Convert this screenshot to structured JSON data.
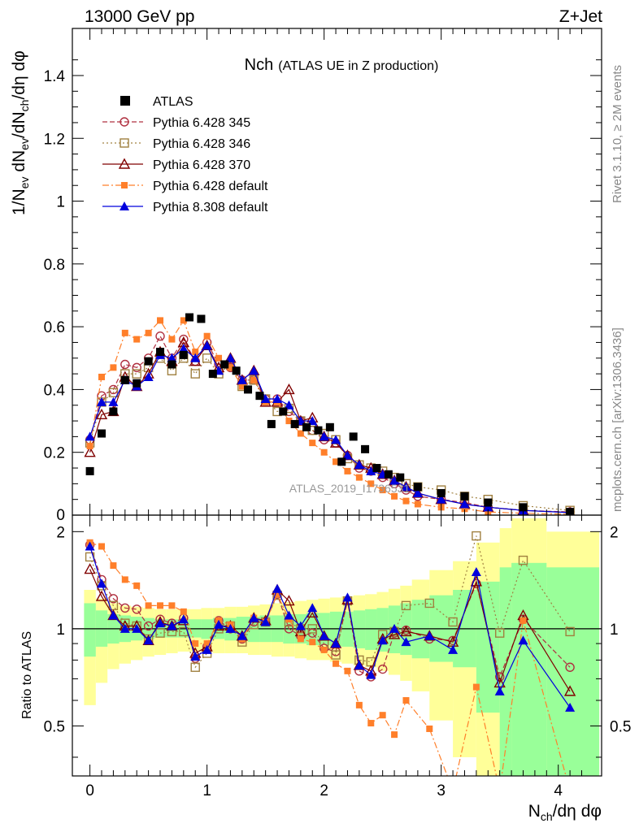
{
  "header": {
    "energy": "13000 GeV pp",
    "process": "Z+Jet",
    "title_main": "Nch",
    "title_sub": "(ATLAS UE in Z production)",
    "watermark": "ATLAS_2019_I1736531",
    "side_top": "Rivet 3.1.10, ≥ 2M events",
    "side_bottom": "mcplots.cern.ch [arXiv:1306.3436]"
  },
  "chart_data": {
    "type": "scatter",
    "title": "Nch (ATLAS UE in Z production)",
    "xlabel": "N_ch/dη dφ",
    "ylabel": "1/N_ev dN_ev/dN_ch/dη dφ",
    "ratio_ylabel": "Ratio to ATLAS",
    "xlim": [
      -0.15,
      4.37
    ],
    "ylim": [
      0,
      1.55
    ],
    "ratio_ylim": [
      0.35,
      2.25
    ],
    "x_ticks": [
      0,
      1,
      2,
      3,
      4
    ],
    "y_ticks": [
      0.2,
      0.4,
      0.6,
      0.8,
      1,
      1.2,
      1.4
    ],
    "ratio_ticks": [
      0.5,
      1,
      2
    ],
    "legend_position": "top-left",
    "data": {
      "name": "ATLAS",
      "color": "#000000",
      "x": [
        0.0,
        0.1,
        0.2,
        0.3,
        0.4,
        0.5,
        0.6,
        0.7,
        0.8,
        0.85,
        0.95,
        1.05,
        1.15,
        1.25,
        1.35,
        1.45,
        1.55,
        1.65,
        1.75,
        1.85,
        1.95,
        2.05,
        2.15,
        2.25,
        2.35,
        2.45,
        2.55,
        2.65,
        2.8,
        3.0,
        3.2,
        3.4,
        3.7,
        4.1
      ],
      "y": [
        0.14,
        0.26,
        0.33,
        0.43,
        0.42,
        0.49,
        0.52,
        0.48,
        0.51,
        0.63,
        0.625,
        0.45,
        0.48,
        0.46,
        0.4,
        0.38,
        0.29,
        0.33,
        0.29,
        0.28,
        0.27,
        0.28,
        0.17,
        0.25,
        0.21,
        0.15,
        0.13,
        0.12,
        0.09,
        0.07,
        0.06,
        0.04,
        0.025,
        0.01
      ]
    },
    "band_bins": [
      -0.05,
      0.05,
      0.15,
      0.25,
      0.35,
      0.45,
      0.55,
      0.65,
      0.75,
      0.85,
      0.95,
      1.05,
      1.15,
      1.25,
      1.35,
      1.45,
      1.55,
      1.65,
      1.75,
      1.85,
      1.95,
      2.05,
      2.15,
      2.25,
      2.35,
      2.45,
      2.55,
      2.65,
      2.75,
      2.9,
      3.1,
      3.3,
      3.5,
      3.6,
      3.9,
      4.35
    ],
    "band_inner_lo": [
      0.82,
      0.88,
      0.9,
      0.91,
      0.92,
      0.93,
      0.94,
      0.94,
      0.94,
      0.94,
      0.93,
      0.93,
      0.92,
      0.92,
      0.91,
      0.91,
      0.91,
      0.9,
      0.9,
      0.89,
      0.89,
      0.88,
      0.88,
      0.87,
      0.86,
      0.85,
      0.84,
      0.83,
      0.81,
      0.79,
      0.76,
      0.55,
      0.35,
      0.35,
      0.35
    ],
    "band_inner_hi": [
      1.2,
      1.14,
      1.11,
      1.1,
      1.09,
      1.08,
      1.07,
      1.07,
      1.07,
      1.07,
      1.07,
      1.08,
      1.08,
      1.09,
      1.09,
      1.1,
      1.1,
      1.11,
      1.11,
      1.12,
      1.12,
      1.13,
      1.13,
      1.14,
      1.15,
      1.16,
      1.18,
      1.2,
      1.23,
      1.27,
      1.32,
      1.4,
      1.55,
      1.6,
      1.55
    ],
    "band_outer_lo": [
      0.58,
      0.68,
      0.75,
      0.78,
      0.8,
      0.82,
      0.83,
      0.84,
      0.85,
      0.85,
      0.85,
      0.84,
      0.84,
      0.84,
      0.83,
      0.83,
      0.82,
      0.82,
      0.81,
      0.8,
      0.8,
      0.79,
      0.78,
      0.77,
      0.76,
      0.74,
      0.72,
      0.69,
      0.64,
      0.52,
      0.4,
      0.35,
      0.35,
      0.35,
      0.35
    ],
    "band_outer_hi": [
      1.32,
      1.24,
      1.2,
      1.18,
      1.17,
      1.16,
      1.15,
      1.15,
      1.15,
      1.15,
      1.16,
      1.16,
      1.17,
      1.17,
      1.18,
      1.19,
      1.2,
      1.21,
      1.22,
      1.23,
      1.24,
      1.25,
      1.26,
      1.27,
      1.28,
      1.3,
      1.33,
      1.36,
      1.42,
      1.52,
      1.62,
      1.85,
      2.05,
      2.2,
      2.0
    ],
    "series": [
      {
        "name": "Pythia 6.428 345",
        "color": "#b03040",
        "marker": "open-circle",
        "dash": "6,3",
        "x": [
          0.0,
          0.1,
          0.2,
          0.3,
          0.4,
          0.5,
          0.6,
          0.7,
          0.8,
          0.9,
          1.0,
          1.1,
          1.2,
          1.3,
          1.4,
          1.5,
          1.6,
          1.7,
          1.8,
          1.9,
          2.0,
          2.1,
          2.2,
          2.3,
          2.4,
          2.5,
          2.6,
          2.7,
          2.8,
          3.0,
          3.2,
          3.4,
          3.7,
          4.1
        ],
        "y": [
          0.24,
          0.38,
          0.4,
          0.48,
          0.47,
          0.5,
          0.57,
          0.5,
          0.56,
          0.49,
          0.55,
          0.48,
          0.47,
          0.43,
          0.43,
          0.37,
          0.37,
          0.33,
          0.3,
          0.27,
          0.24,
          0.23,
          0.19,
          0.15,
          0.14,
          0.12,
          0.1,
          0.08,
          0.06,
          0.05,
          0.04,
          0.025,
          0.015,
          0.01
        ],
        "ratio_x": [
          0.0,
          0.1,
          0.2,
          0.3,
          0.4,
          0.5,
          0.6,
          0.7,
          0.8,
          0.9,
          1.0,
          1.1,
          1.2,
          1.3,
          1.4,
          1.5,
          1.6,
          1.7,
          1.8,
          1.9,
          2.0,
          2.1,
          2.2,
          2.3,
          2.4,
          2.5,
          2.6,
          2.7,
          2.9,
          3.1,
          3.3,
          3.5,
          3.7,
          4.1
        ],
        "ratio": [
          1.82,
          1.42,
          1.24,
          1.16,
          1.15,
          1.02,
          1.07,
          1.04,
          1.08,
          0.81,
          0.88,
          1.06,
          1.0,
          0.93,
          1.05,
          1.05,
          1.28,
          1.0,
          0.95,
          0.97,
          0.87,
          0.85,
          1.22,
          0.74,
          0.71,
          0.75,
          0.97,
          0.99,
          0.93,
          0.92,
          1.38,
          0.71,
          1.07,
          0.76
        ]
      },
      {
        "name": "Pythia 6.428 346",
        "color": "#a08040",
        "marker": "open-square",
        "dash": "2,3",
        "x": [
          0.0,
          0.1,
          0.2,
          0.3,
          0.4,
          0.5,
          0.6,
          0.7,
          0.8,
          0.9,
          1.0,
          1.1,
          1.2,
          1.3,
          1.4,
          1.5,
          1.6,
          1.7,
          1.8,
          1.9,
          2.0,
          2.1,
          2.2,
          2.3,
          2.4,
          2.5,
          2.6,
          2.7,
          2.8,
          3.0,
          3.2,
          3.4,
          3.7,
          4.1
        ],
        "y": [
          0.23,
          0.36,
          0.39,
          0.45,
          0.45,
          0.47,
          0.5,
          0.46,
          0.5,
          0.45,
          0.5,
          0.45,
          0.48,
          0.41,
          0.43,
          0.37,
          0.33,
          0.34,
          0.3,
          0.27,
          0.26,
          0.24,
          0.18,
          0.16,
          0.15,
          0.14,
          0.12,
          0.1,
          0.09,
          0.08,
          0.06,
          0.05,
          0.03,
          0.015
        ],
        "ratio_x": [
          0.0,
          0.1,
          0.2,
          0.3,
          0.4,
          0.5,
          0.6,
          0.7,
          0.8,
          0.9,
          1.0,
          1.1,
          1.2,
          1.3,
          1.4,
          1.5,
          1.6,
          1.7,
          1.8,
          1.9,
          2.0,
          2.1,
          2.2,
          2.3,
          2.4,
          2.5,
          2.6,
          2.7,
          2.9,
          3.1,
          3.3,
          3.5,
          3.7,
          4.1
        ],
        "ratio": [
          1.67,
          1.36,
          1.18,
          1.04,
          1.02,
          0.93,
          0.97,
          0.98,
          0.98,
          0.76,
          0.84,
          1.0,
          1.02,
          0.91,
          1.03,
          1.05,
          1.27,
          1.05,
          1.0,
          1.0,
          0.9,
          0.83,
          1.22,
          0.8,
          0.79,
          0.96,
          0.98,
          1.18,
          1.2,
          1.05,
          1.94,
          0.97,
          1.63,
          0.98
        ]
      },
      {
        "name": "Pythia 6.428 370",
        "color": "#800000",
        "marker": "open-triangle",
        "dash": "",
        "x": [
          0.0,
          0.1,
          0.2,
          0.3,
          0.4,
          0.5,
          0.6,
          0.7,
          0.8,
          0.9,
          1.0,
          1.1,
          1.2,
          1.3,
          1.4,
          1.5,
          1.6,
          1.7,
          1.8,
          1.9,
          2.0,
          2.1,
          2.2,
          2.3,
          2.4,
          2.5,
          2.6,
          2.7,
          2.8,
          3.0,
          3.2,
          3.4,
          3.7,
          4.1
        ],
        "y": [
          0.2,
          0.32,
          0.33,
          0.44,
          0.41,
          0.45,
          0.52,
          0.49,
          0.55,
          0.49,
          0.54,
          0.47,
          0.5,
          0.43,
          0.46,
          0.36,
          0.36,
          0.4,
          0.3,
          0.31,
          0.25,
          0.23,
          0.19,
          0.16,
          0.15,
          0.13,
          0.11,
          0.09,
          0.07,
          0.05,
          0.035,
          0.025,
          0.015,
          0.008
        ],
        "ratio_x": [
          0.0,
          0.1,
          0.2,
          0.3,
          0.4,
          0.5,
          0.6,
          0.7,
          0.8,
          0.9,
          1.0,
          1.1,
          1.2,
          1.3,
          1.4,
          1.5,
          1.6,
          1.7,
          1.8,
          1.9,
          2.0,
          2.1,
          2.2,
          2.3,
          2.4,
          2.5,
          2.6,
          2.7,
          2.9,
          3.1,
          3.3,
          3.5,
          3.7,
          4.1
        ],
        "ratio": [
          1.53,
          1.26,
          1.1,
          1.02,
          1.02,
          0.92,
          1.05,
          1.02,
          1.06,
          0.84,
          0.88,
          1.02,
          1.02,
          0.95,
          1.08,
          1.06,
          1.32,
          1.22,
          0.98,
          1.12,
          0.95,
          0.9,
          1.23,
          0.77,
          0.74,
          0.93,
          0.96,
          0.98,
          0.95,
          0.91,
          1.4,
          0.68,
          1.1,
          0.64
        ]
      },
      {
        "name": "Pythia 6.428 default",
        "color": "#ff7f2a",
        "marker": "filled-square",
        "dash": "8,3,2,3",
        "x": [
          0.0,
          0.1,
          0.2,
          0.3,
          0.4,
          0.5,
          0.6,
          0.7,
          0.8,
          0.9,
          1.0,
          1.1,
          1.2,
          1.3,
          1.4,
          1.5,
          1.6,
          1.7,
          1.8,
          1.9,
          2.0,
          2.1,
          2.2,
          2.3,
          2.4,
          2.5,
          2.6,
          2.7,
          2.8,
          3.0,
          3.2,
          3.4,
          3.7,
          4.1
        ],
        "y": [
          0.22,
          0.44,
          0.47,
          0.58,
          0.56,
          0.58,
          0.62,
          0.56,
          0.62,
          0.52,
          0.57,
          0.5,
          0.47,
          0.41,
          0.43,
          0.36,
          0.36,
          0.3,
          0.26,
          0.23,
          0.2,
          0.17,
          0.14,
          0.12,
          0.1,
          0.08,
          0.06,
          0.045,
          0.035,
          0.025,
          0.02,
          0.01,
          0.006,
          0.003
        ],
        "ratio_x": [
          0.0,
          0.1,
          0.2,
          0.3,
          0.4,
          0.5,
          0.6,
          0.7,
          0.8,
          0.9,
          1.0,
          1.1,
          1.2,
          1.3,
          1.4,
          1.5,
          1.6,
          1.7,
          1.8,
          1.9,
          2.0,
          2.1,
          2.2,
          2.3,
          2.4,
          2.5,
          2.6,
          2.7,
          2.9,
          3.1,
          3.3,
          3.5,
          3.7,
          4.1
        ],
        "ratio": [
          1.85,
          1.8,
          1.57,
          1.42,
          1.36,
          1.18,
          1.18,
          1.18,
          1.13,
          0.9,
          0.9,
          1.06,
          1.03,
          0.93,
          1.08,
          1.05,
          1.28,
          1.07,
          0.93,
          0.91,
          0.86,
          0.78,
          0.74,
          0.58,
          0.51,
          0.54,
          0.47,
          0.6,
          0.49,
          0.3,
          0.66,
          0.3,
          1.06,
          0.3
        ]
      },
      {
        "name": "Pythia 8.308 default",
        "color": "#0000dd",
        "marker": "filled-triangle",
        "dash": "",
        "x": [
          0.0,
          0.1,
          0.2,
          0.3,
          0.4,
          0.5,
          0.6,
          0.7,
          0.8,
          0.9,
          1.0,
          1.1,
          1.2,
          1.3,
          1.4,
          1.5,
          1.6,
          1.7,
          1.8,
          1.9,
          2.0,
          2.1,
          2.2,
          2.3,
          2.4,
          2.5,
          2.6,
          2.7,
          2.8,
          3.0,
          3.2,
          3.4,
          3.7,
          4.1
        ],
        "y": [
          0.25,
          0.36,
          0.36,
          0.43,
          0.41,
          0.44,
          0.51,
          0.5,
          0.53,
          0.5,
          0.54,
          0.46,
          0.5,
          0.43,
          0.46,
          0.37,
          0.37,
          0.35,
          0.3,
          0.3,
          0.25,
          0.24,
          0.19,
          0.16,
          0.14,
          0.13,
          0.11,
          0.09,
          0.07,
          0.05,
          0.035,
          0.025,
          0.015,
          0.008
        ],
        "ratio_x": [
          0.0,
          0.1,
          0.2,
          0.3,
          0.4,
          0.5,
          0.6,
          0.7,
          0.8,
          0.9,
          1.0,
          1.1,
          1.2,
          1.3,
          1.4,
          1.5,
          1.6,
          1.7,
          1.8,
          1.9,
          2.0,
          2.1,
          2.2,
          2.3,
          2.4,
          2.5,
          2.6,
          2.7,
          2.9,
          3.1,
          3.3,
          3.5,
          3.7,
          4.1
        ],
        "ratio": [
          1.8,
          1.38,
          1.1,
          1.0,
          1.0,
          0.92,
          1.04,
          1.02,
          1.07,
          0.82,
          0.86,
          1.03,
          1.0,
          0.95,
          1.08,
          1.05,
          1.33,
          1.1,
          1.02,
          1.16,
          0.95,
          0.9,
          1.25,
          0.77,
          0.72,
          0.92,
          1.0,
          0.91,
          0.95,
          0.86,
          1.5,
          0.64,
          0.92,
          0.57
        ]
      }
    ]
  }
}
